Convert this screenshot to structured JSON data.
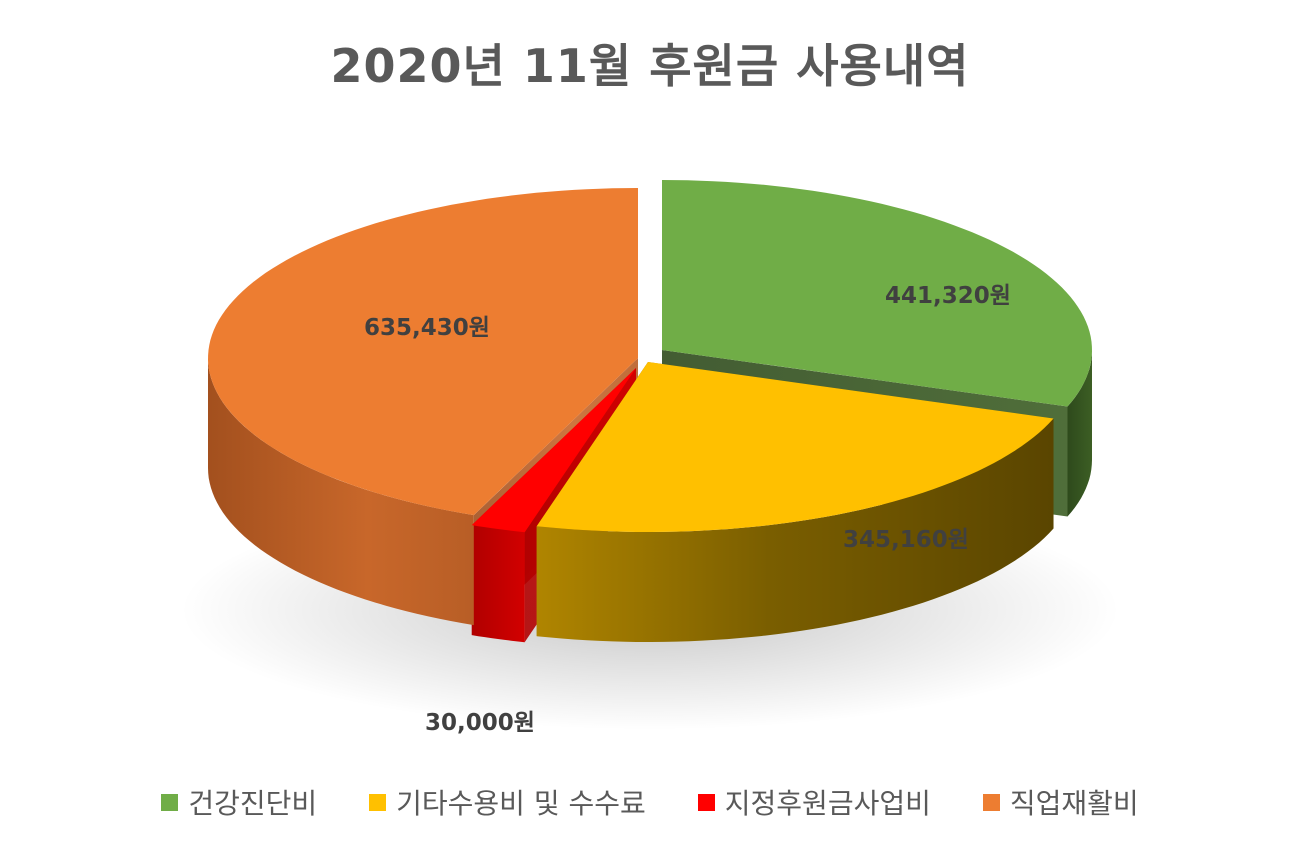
{
  "chart_data": {
    "type": "pie",
    "title": "2020년 11월 후원금 사용내역",
    "series": [
      {
        "values": [
          441320,
          345160,
          30000,
          635430
        ],
        "labels": [
          "441,320원",
          "345,160원",
          "30,000원",
          "635,430원"
        ]
      }
    ],
    "categories": [
      "건강진단비",
      "기타수용비 및 수수료",
      "지정후원금사업비",
      "직업재활비"
    ],
    "colors": [
      "#70AD47",
      "#FFC000",
      "#FF0000",
      "#ED7D31"
    ],
    "legend_position": "bottom",
    "style": "3d-exploded"
  }
}
